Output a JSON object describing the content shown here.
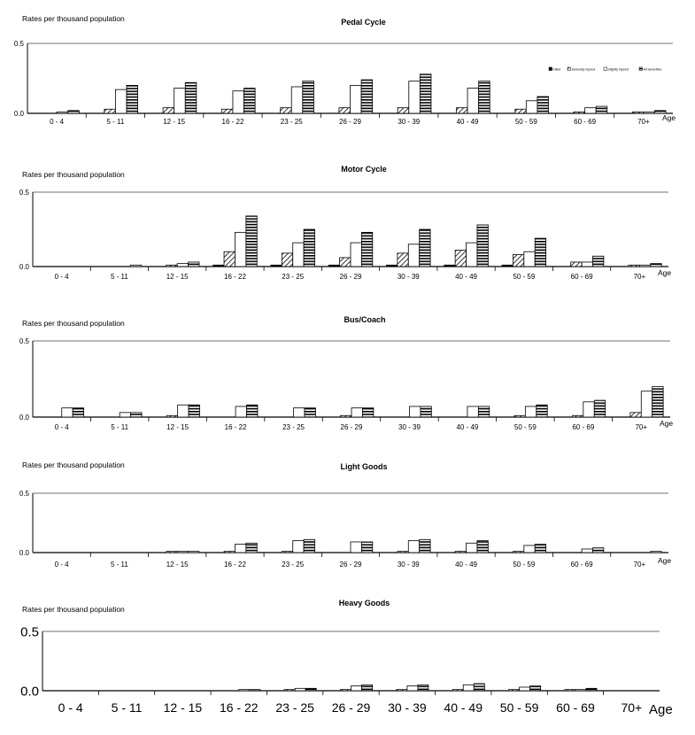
{
  "chart_data": [
    {
      "type": "bar",
      "title": "Pedal Cycle",
      "ylabel": "Rates per thousand population",
      "xlabel": "Age",
      "ylim": [
        0,
        0.5
      ],
      "yticks": [
        "0.0",
        "0.5"
      ],
      "grid": false,
      "legend": "right",
      "categories": [
        "0 - 4",
        "5 - 11",
        "12 - 15",
        "16 - 22",
        "23 - 25",
        "26 - 29",
        "30 - 39",
        "40 - 49",
        "50 - 59",
        "60 - 69",
        "70+"
      ],
      "series": [
        {
          "name": "Killed",
          "values": [
            0,
            0,
            0,
            0,
            0,
            0,
            0,
            0,
            0,
            0,
            0
          ]
        },
        {
          "name": "Seriously injured",
          "values": [
            0,
            0.03,
            0.04,
            0.03,
            0.04,
            0.04,
            0.04,
            0.04,
            0.03,
            0.01,
            0.01
          ]
        },
        {
          "name": "Slightly injured",
          "values": [
            0.01,
            0.17,
            0.18,
            0.16,
            0.19,
            0.2,
            0.23,
            0.18,
            0.09,
            0.04,
            0.01
          ]
        },
        {
          "name": "All Severities",
          "values": [
            0.02,
            0.2,
            0.22,
            0.18,
            0.23,
            0.24,
            0.28,
            0.23,
            0.12,
            0.05,
            0.02
          ]
        }
      ]
    },
    {
      "type": "bar",
      "title": "Motor Cycle",
      "ylabel": "Rates per thousand population",
      "xlabel": "Age",
      "ylim": [
        0,
        0.5
      ],
      "yticks": [
        "0.0",
        "0.5"
      ],
      "grid": false,
      "categories": [
        "0  - 4",
        "5  - 11",
        "12 - 15",
        "16 - 22",
        "23 - 25",
        "26 - 29",
        "30 - 39",
        "40 - 49",
        "50 - 59",
        "60 - 69",
        "70+"
      ],
      "series": [
        {
          "values": [
            0,
            0,
            0,
            0.01,
            0.01,
            0.01,
            0.01,
            0.01,
            0.01,
            0,
            0
          ]
        },
        {
          "values": [
            0,
            0,
            0.01,
            0.1,
            0.09,
            0.06,
            0.09,
            0.11,
            0.08,
            0.03,
            0.01
          ]
        },
        {
          "values": [
            0,
            0,
            0.02,
            0.23,
            0.16,
            0.16,
            0.15,
            0.16,
            0.1,
            0.03,
            0.01
          ]
        },
        {
          "values": [
            0,
            0.01,
            0.03,
            0.34,
            0.25,
            0.23,
            0.25,
            0.28,
            0.19,
            0.07,
            0.02
          ]
        }
      ]
    },
    {
      "type": "bar",
      "title": "Bus/Coach",
      "ylabel": "Rates per thousand population",
      "xlabel": "Age",
      "ylim": [
        0,
        0.5
      ],
      "yticks": [
        "0.0",
        "0.5"
      ],
      "grid": false,
      "categories": [
        "0  - 4",
        "5  - 11",
        "12 - 15",
        "16 - 22",
        "23 - 25",
        "26 - 29",
        "30 - 39",
        "40 - 49",
        "50 - 59",
        "60 - 69",
        "70+"
      ],
      "series": [
        {
          "values": [
            0,
            0,
            0,
            0,
            0,
            0,
            0,
            0,
            0,
            0,
            0
          ]
        },
        {
          "values": [
            0,
            0,
            0.01,
            0,
            0,
            0.01,
            0,
            0,
            0.01,
            0.01,
            0.03
          ]
        },
        {
          "values": [
            0.06,
            0.03,
            0.08,
            0.07,
            0.06,
            0.06,
            0.07,
            0.07,
            0.07,
            0.1,
            0.17
          ]
        },
        {
          "values": [
            0.06,
            0.03,
            0.08,
            0.08,
            0.06,
            0.06,
            0.07,
            0.07,
            0.08,
            0.11,
            0.2
          ]
        }
      ]
    },
    {
      "type": "bar",
      "title": "Light Goods",
      "ylabel": "Rates per thousand population",
      "xlabel": "Age",
      "ylim": [
        0,
        0.5
      ],
      "yticks": [
        "0.0",
        "0.5"
      ],
      "grid": false,
      "categories": [
        "0  - 4",
        "5  - 11",
        "12 - 15",
        "16 - 22",
        "23 - 25",
        "26 - 29",
        "30 - 39",
        "40 - 49",
        "50 - 59",
        "60 - 69",
        "70+"
      ],
      "series": [
        {
          "values": [
            0,
            0,
            0,
            0,
            0,
            0,
            0,
            0,
            0,
            0,
            0
          ]
        },
        {
          "values": [
            0,
            0,
            0.01,
            0.01,
            0.01,
            0,
            0.01,
            0.01,
            0.01,
            0,
            0
          ]
        },
        {
          "values": [
            0,
            0,
            0.01,
            0.07,
            0.1,
            0.09,
            0.1,
            0.08,
            0.06,
            0.03,
            0
          ]
        },
        {
          "values": [
            0,
            0,
            0.01,
            0.08,
            0.11,
            0.09,
            0.11,
            0.1,
            0.07,
            0.04,
            0.01
          ]
        }
      ]
    },
    {
      "type": "bar",
      "title": "Heavy Goods",
      "ylabel": "Rates per thousand population",
      "xlabel": "Age",
      "ylim": [
        0,
        0.5
      ],
      "yticks": [
        "0.0",
        "0.5"
      ],
      "grid": false,
      "categories": [
        "0  - 4",
        "5  - 11",
        "12 - 15",
        "16 - 22",
        "23 - 25",
        "26 - 29",
        "30 - 39",
        "40 - 49",
        "50 - 59",
        "60 - 69",
        "70+"
      ],
      "series": [
        {
          "values": [
            0,
            0,
            0,
            0,
            0,
            0,
            0,
            0,
            0,
            0,
            0
          ]
        },
        {
          "values": [
            0,
            0,
            0,
            0,
            0.01,
            0.01,
            0.01,
            0.01,
            0.01,
            0.01,
            0
          ]
        },
        {
          "values": [
            0,
            0,
            0,
            0.01,
            0.02,
            0.04,
            0.04,
            0.05,
            0.03,
            0.01,
            0
          ]
        },
        {
          "values": [
            0,
            0,
            0,
            0.01,
            0.02,
            0.05,
            0.05,
            0.06,
            0.04,
            0.02,
            0
          ]
        }
      ]
    }
  ],
  "colors": {
    "killed": "#000000",
    "serious": "hatched",
    "slight": "#ffffff",
    "all": "horizontal-stripes",
    "axis": "#000000",
    "top_line": "#a0a0a0"
  }
}
